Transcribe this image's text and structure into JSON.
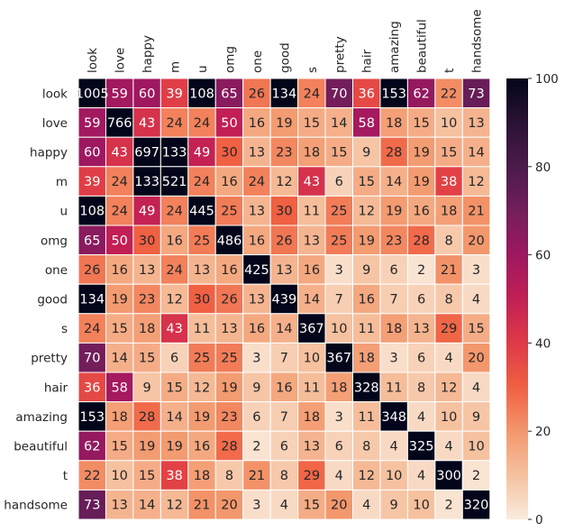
{
  "chart_data": {
    "type": "heatmap",
    "title": "",
    "xlabel": "",
    "ylabel": "",
    "labels": [
      "look",
      "love",
      "happy",
      "m",
      "u",
      "omg",
      "one",
      "good",
      "s",
      "pretty",
      "hair",
      "amazing",
      "beautiful",
      "t",
      "handsome"
    ],
    "values": [
      [
        1005,
        59,
        60,
        39,
        108,
        65,
        26,
        134,
        24,
        70,
        36,
        153,
        62,
        22,
        73
      ],
      [
        59,
        766,
        43,
        24,
        24,
        50,
        16,
        19,
        15,
        14,
        58,
        18,
        15,
        10,
        13
      ],
      [
        60,
        43,
        697,
        133,
        49,
        30,
        13,
        23,
        18,
        15,
        9,
        28,
        19,
        15,
        14
      ],
      [
        39,
        24,
        133,
        521,
        24,
        16,
        24,
        12,
        43,
        6,
        15,
        14,
        19,
        38,
        12
      ],
      [
        108,
        24,
        49,
        24,
        445,
        25,
        13,
        30,
        11,
        25,
        12,
        19,
        16,
        18,
        21
      ],
      [
        65,
        50,
        30,
        16,
        25,
        486,
        16,
        26,
        13,
        25,
        19,
        23,
        28,
        8,
        20
      ],
      [
        26,
        16,
        13,
        24,
        13,
        16,
        425,
        13,
        16,
        3,
        9,
        6,
        2,
        21,
        3
      ],
      [
        134,
        19,
        23,
        12,
        30,
        26,
        13,
        439,
        14,
        7,
        16,
        7,
        6,
        8,
        4
      ],
      [
        24,
        15,
        18,
        43,
        11,
        13,
        16,
        14,
        367,
        10,
        11,
        18,
        13,
        29,
        15
      ],
      [
        70,
        14,
        15,
        6,
        25,
        25,
        3,
        7,
        10,
        367,
        18,
        3,
        6,
        4,
        20
      ],
      [
        36,
        58,
        9,
        15,
        12,
        19,
        9,
        16,
        11,
        18,
        328,
        11,
        8,
        12,
        4
      ],
      [
        153,
        18,
        28,
        14,
        19,
        23,
        6,
        7,
        18,
        3,
        11,
        348,
        4,
        10,
        9
      ],
      [
        62,
        15,
        19,
        19,
        16,
        28,
        2,
        6,
        13,
        6,
        8,
        4,
        325,
        4,
        10
      ],
      [
        22,
        10,
        15,
        38,
        18,
        8,
        21,
        8,
        29,
        4,
        12,
        10,
        4,
        300,
        2
      ],
      [
        73,
        13,
        14,
        12,
        21,
        20,
        3,
        4,
        15,
        20,
        4,
        9,
        10,
        2,
        320
      ]
    ],
    "color_range": [
      0,
      100
    ],
    "colorbar_ticks": [
      0,
      20,
      40,
      60,
      80,
      100
    ],
    "colormap": "rocket_r",
    "x_axis_position": "top",
    "legend": "colorbar-right",
    "cell_separator_color": "#ffffff"
  }
}
